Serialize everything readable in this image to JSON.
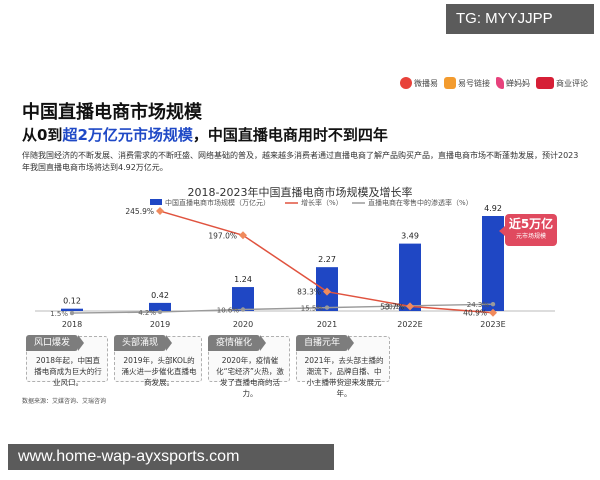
{
  "overlay": {
    "top_right": "TG: MYYJJPP",
    "bottom_left": "www.home-wap-ayxsports.com"
  },
  "logos": [
    "微播易",
    "易号链接",
    "蝉妈妈",
    "商业评论"
  ],
  "header": {
    "title": "中国直播电商市场规模",
    "subtitle_pre": "从0到",
    "subtitle_highlight": "超2万亿元市场规模",
    "subtitle_post": "，中国直播电商用时不到四年",
    "description": "伴随我国经济的不断发展、消费需求的不断旺盛、网络基础的普及，越来越多消费者通过直播电商了解产品购买产品，直播电商市场不断蓬勃发展，预计2023年我国直播电商市场将达到4.92万亿元。"
  },
  "callout": {
    "big": "近5万亿",
    "small": "元市场规模"
  },
  "stages": [
    {
      "title": "风口爆发",
      "text": "2018年起，中国直播电商成为巨大的行业风口。"
    },
    {
      "title": "头部涌现",
      "text": "2019年，头部KOL的涌火进一步催化直播电商发展。"
    },
    {
      "title": "疫情催化",
      "text": "2020年，疫情催化“宅经济”火热，激发了直播电商的活力。"
    },
    {
      "title": "自播元年",
      "text": "2021年，去头部主播的潮流下，品牌自播、中小主播带货迎来发展元年。"
    }
  ],
  "source": "数据来源：艾媒咨询、艾瑞咨询",
  "colors": {
    "bar": "#1f47c4",
    "growth": "#e0533f",
    "penetration": "#9a9a9a",
    "accent": "#1f49c6",
    "callout": "#e04a5f"
  },
  "chart_data": {
    "type": "bar",
    "title": "2018-2023年中国直播电商市场规模及增长率",
    "categories": [
      "2018",
      "2019",
      "2020",
      "2021",
      "2022E",
      "2023E"
    ],
    "series": [
      {
        "name": "中国直播电商市场规模（万亿元）",
        "type": "bar",
        "values": [
          0.12,
          0.42,
          1.24,
          2.27,
          3.49,
          4.92
        ],
        "labels": [
          "0.12",
          "0.42",
          "1.24",
          "2.27",
          "3.49",
          "4.92"
        ]
      },
      {
        "name": "增长率（%）",
        "type": "line",
        "values": [
          null,
          245.9,
          197.0,
          83.3,
          53.7,
          40.9
        ],
        "labels": [
          "",
          "245.9%",
          "197.0%",
          "83.3%",
          "53.7%",
          "40.9%"
        ]
      },
      {
        "name": "直播电商在零售中的渗透率（%）",
        "type": "line",
        "values": [
          1.5,
          4.2,
          10.6,
          15.5,
          20.1,
          24.3
        ],
        "labels": [
          "1.5%",
          "4.2%",
          "10.6%",
          "15.5%",
          "20.1%",
          "24.3%"
        ]
      }
    ]
  }
}
